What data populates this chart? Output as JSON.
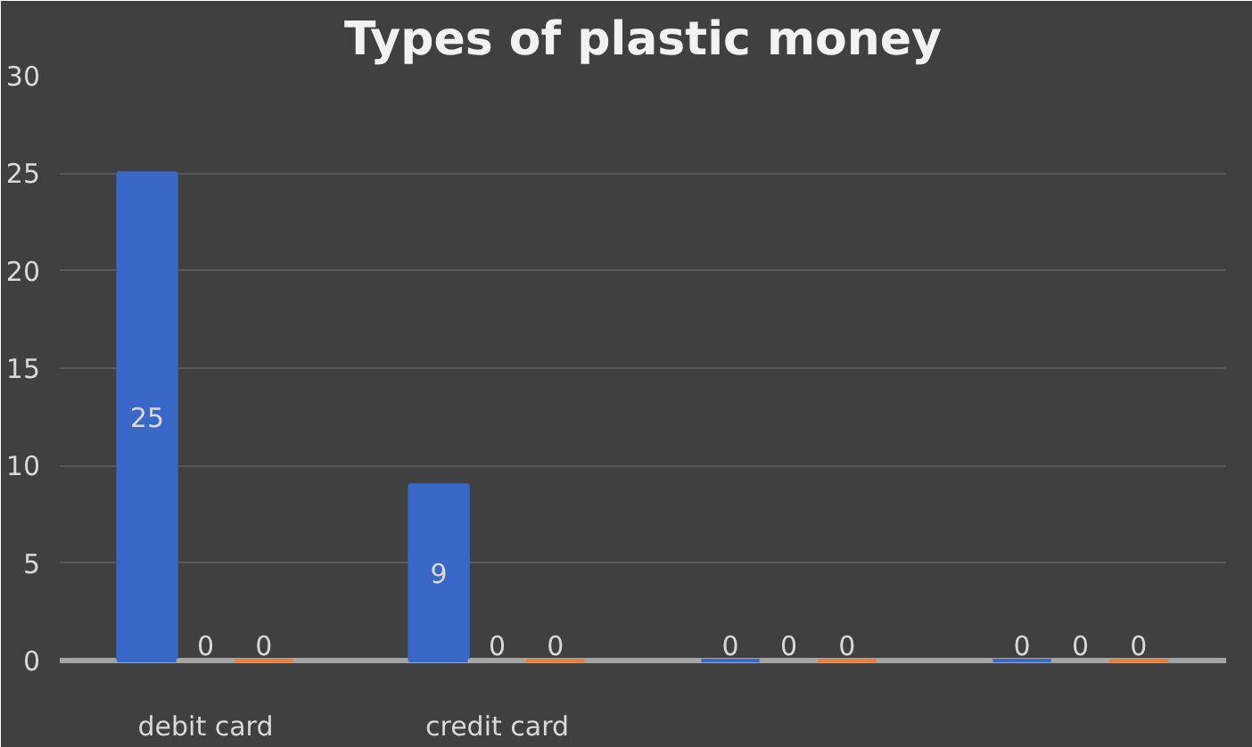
{
  "chart_data": {
    "type": "bar",
    "title": "Types of plastic money",
    "categories": [
      "debit card",
      "credit card",
      null,
      null
    ],
    "series": [
      {
        "color": "#3a68c6",
        "values": [
          25,
          9,
          0,
          0
        ]
      },
      {
        "color": "#a5a5a5",
        "values": [
          0,
          0,
          0,
          0
        ]
      },
      {
        "color": "#ed7d31",
        "values": [
          0,
          0,
          0,
          0
        ]
      }
    ],
    "ylim": [
      0,
      30
    ],
    "yticks": [
      0,
      5,
      10,
      15,
      20,
      25,
      30
    ],
    "grid": "y",
    "data_labels": true
  }
}
